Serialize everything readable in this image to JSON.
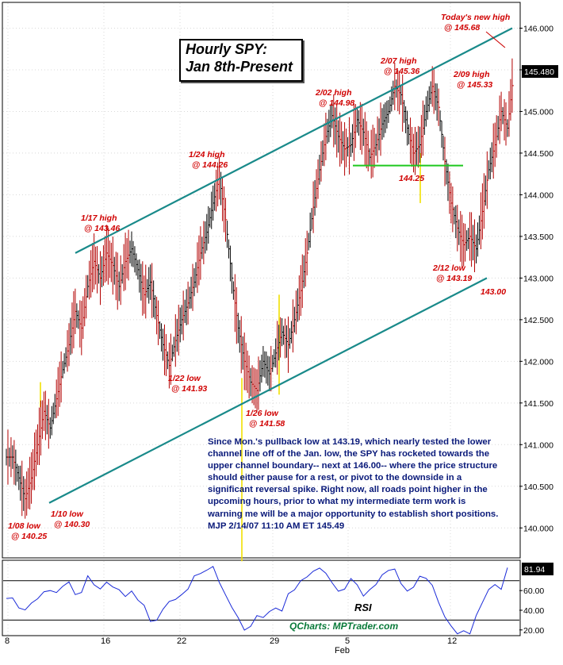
{
  "title": {
    "line1": "Hourly SPY:",
    "line2": "Jan 8th-Present"
  },
  "commentary": {
    "body": "Since Mon.'s pullback low at 143.19, which nearly tested the lower channel line off of the Jan. low, the SPY has rocketed towards the upper channel boundary-- next at 146.00-- where the price structure should either pause for a rest, or pivot to the downside in a significant reversal spike. Right now, all roads point higher in the upcoming hours, prior to what my intermediate term work is warning me will be a major opportunity to establish short positions.",
    "signature": "MJP  2/14/07 11:10 AM  ET  145.49"
  },
  "watermark": "QCharts: MPTrader.com",
  "chart_data": [
    {
      "type": "line",
      "name": "price",
      "x_labels": [
        "8",
        "16",
        "22",
        "29",
        "5",
        "12"
      ],
      "x_month_label": "Feb",
      "y_ticks": [
        140.0,
        140.5,
        141.0,
        141.5,
        142.0,
        142.5,
        143.0,
        143.5,
        144.0,
        144.5,
        145.0,
        145.5,
        146.0
      ],
      "y_tick_labels": [
        "140.000",
        "140.500",
        "141.000",
        "141.500",
        "142.000",
        "142.500",
        "143.000",
        "143.500",
        "144.000",
        "144.500",
        "145.000",
        "145.500",
        "146.000"
      ],
      "ylim": [
        139.65,
        146.3
      ],
      "last_value_label": "145.480",
      "last_value": 145.48,
      "closes": [
        140.85,
        140.6,
        140.35,
        140.6,
        141.0,
        141.4,
        141.2,
        141.55,
        141.9,
        142.2,
        142.6,
        142.4,
        142.9,
        143.2,
        143.0,
        143.3,
        143.15,
        142.9,
        143.2,
        143.35,
        143.1,
        142.8,
        142.95,
        142.55,
        142.2,
        141.95,
        142.25,
        142.5,
        142.7,
        142.95,
        143.3,
        143.55,
        143.9,
        144.2,
        143.7,
        143.0,
        142.4,
        142.0,
        141.75,
        141.65,
        142.0,
        141.85,
        142.1,
        142.35,
        142.2,
        142.5,
        142.85,
        143.3,
        143.85,
        144.3,
        144.7,
        144.95,
        144.7,
        144.55,
        144.6,
        144.9,
        144.75,
        144.45,
        144.6,
        144.85,
        145.0,
        145.3,
        145.2,
        144.8,
        144.5,
        144.6,
        145.0,
        145.3,
        145.05,
        144.4,
        143.9,
        143.6,
        143.4,
        143.5,
        143.35,
        143.8,
        144.3,
        144.6,
        145.0,
        144.8,
        145.48
      ],
      "annotations": [
        {
          "text1": "1/08 low",
          "text2": "@ 140.25"
        },
        {
          "text1": "1/10 low",
          "text2": "@ 140.30"
        },
        {
          "text1": "1/17 high",
          "text2": "@ 143.46"
        },
        {
          "text1": "1/22 low",
          "text2": "@ 141.93"
        },
        {
          "text1": "1/24 high",
          "text2": "@ 144.26"
        },
        {
          "text1": "1/26 low",
          "text2": "@ 141.58"
        },
        {
          "text1": "2/02 high",
          "text2": "@ 144.98"
        },
        {
          "text1": "2/07 high",
          "text2": "@ 145.36"
        },
        {
          "text1": "2/09 high",
          "text2": "@ 145.33"
        },
        {
          "text1": "2/12 low",
          "text2": "@ 143.19"
        },
        {
          "text1": "Today's new high",
          "text2": "@ 145.68"
        },
        {
          "text1": "144.25",
          "text2": ""
        },
        {
          "text1": "143.00",
          "text2": ""
        }
      ],
      "channel_upper": {
        "from": 143.3,
        "to": 146.0
      },
      "channel_lower": {
        "from": 140.3,
        "to": 143.0
      },
      "support_line": 144.35
    },
    {
      "type": "line",
      "name": "RSI",
      "label": "RSI",
      "ylim": [
        15,
        90
      ],
      "y_ticks": [
        20,
        40,
        60
      ],
      "y_tick_labels": [
        "20.00",
        "40.00",
        "60.00"
      ],
      "last_value_label": "81.94",
      "last_value": 81.94,
      "ref_lines": [
        70,
        30
      ],
      "values": [
        55,
        50,
        45,
        40,
        48,
        52,
        58,
        62,
        65,
        70,
        72,
        60,
        66,
        78,
        70,
        62,
        66,
        64,
        60,
        55,
        58,
        50,
        44,
        35,
        38,
        48,
        55,
        60,
        64,
        68,
        72,
        76,
        82,
        85,
        70,
        55,
        40,
        30,
        26,
        28,
        40,
        36,
        45,
        50,
        44,
        55,
        62,
        70,
        76,
        82,
        84,
        80,
        72,
        65,
        68,
        76,
        72,
        62,
        68,
        74,
        78,
        83,
        80,
        70,
        62,
        66,
        74,
        80,
        72,
        55,
        40,
        30,
        24,
        28,
        22,
        34,
        50,
        60,
        68,
        64,
        81.94
      ]
    }
  ]
}
